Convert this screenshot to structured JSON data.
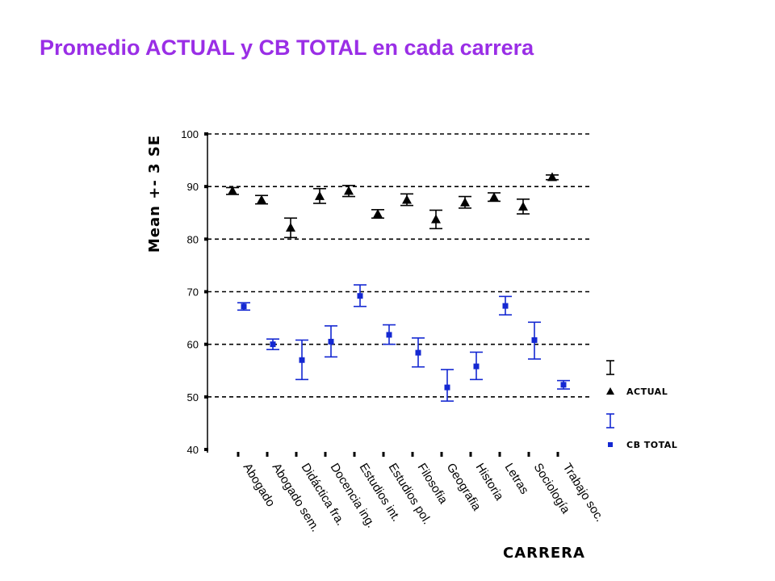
{
  "chart_data": {
    "type": "scatter",
    "title": "Promedio ACTUAL y CB TOTAL en cada carrera",
    "xlabel": "CARRERA",
    "ylabel": "Mean +- 3 SE",
    "ylim": [
      40,
      100
    ],
    "yticks": [
      40,
      50,
      60,
      70,
      80,
      90,
      100
    ],
    "grid": "dashed horizontal",
    "legend_position": "right",
    "categories": [
      "Abogado",
      "Abogado sem.",
      "Didáctica fra.",
      "Docencia ing.",
      "Estudios int.",
      "Estudios pol.",
      "Filosofia",
      "Geografia",
      "Historia",
      "Letras",
      "Sociología",
      "Trabajo soc."
    ],
    "series": [
      {
        "name": "ACTUAL",
        "marker": "triangle",
        "color": "#000000",
        "values": [
          89.2,
          87.5,
          82.2,
          88.2,
          89.2,
          84.8,
          87.5,
          83.8,
          87.0,
          88.0,
          86.2,
          91.8
        ],
        "lower": [
          88.5,
          86.7,
          80.3,
          86.8,
          88.1,
          84.0,
          86.4,
          82.0,
          85.9,
          87.2,
          84.8,
          91.3
        ],
        "upper": [
          89.8,
          88.3,
          84.0,
          89.6,
          90.2,
          85.6,
          88.6,
          85.5,
          88.1,
          88.8,
          87.6,
          92.2
        ]
      },
      {
        "name": "CB TOTAL",
        "marker": "square",
        "color": "#1428d2",
        "values": [
          67.2,
          60.0,
          57.0,
          60.5,
          69.2,
          61.8,
          58.4,
          51.8,
          55.8,
          67.3,
          60.8,
          52.3
        ],
        "lower": [
          66.5,
          59.0,
          53.3,
          57.6,
          67.2,
          60.0,
          55.7,
          49.2,
          53.3,
          65.6,
          57.2,
          51.5
        ],
        "upper": [
          67.9,
          61.0,
          60.8,
          63.5,
          71.3,
          63.7,
          61.2,
          55.2,
          58.5,
          69.1,
          64.2,
          53.1
        ]
      }
    ]
  }
}
